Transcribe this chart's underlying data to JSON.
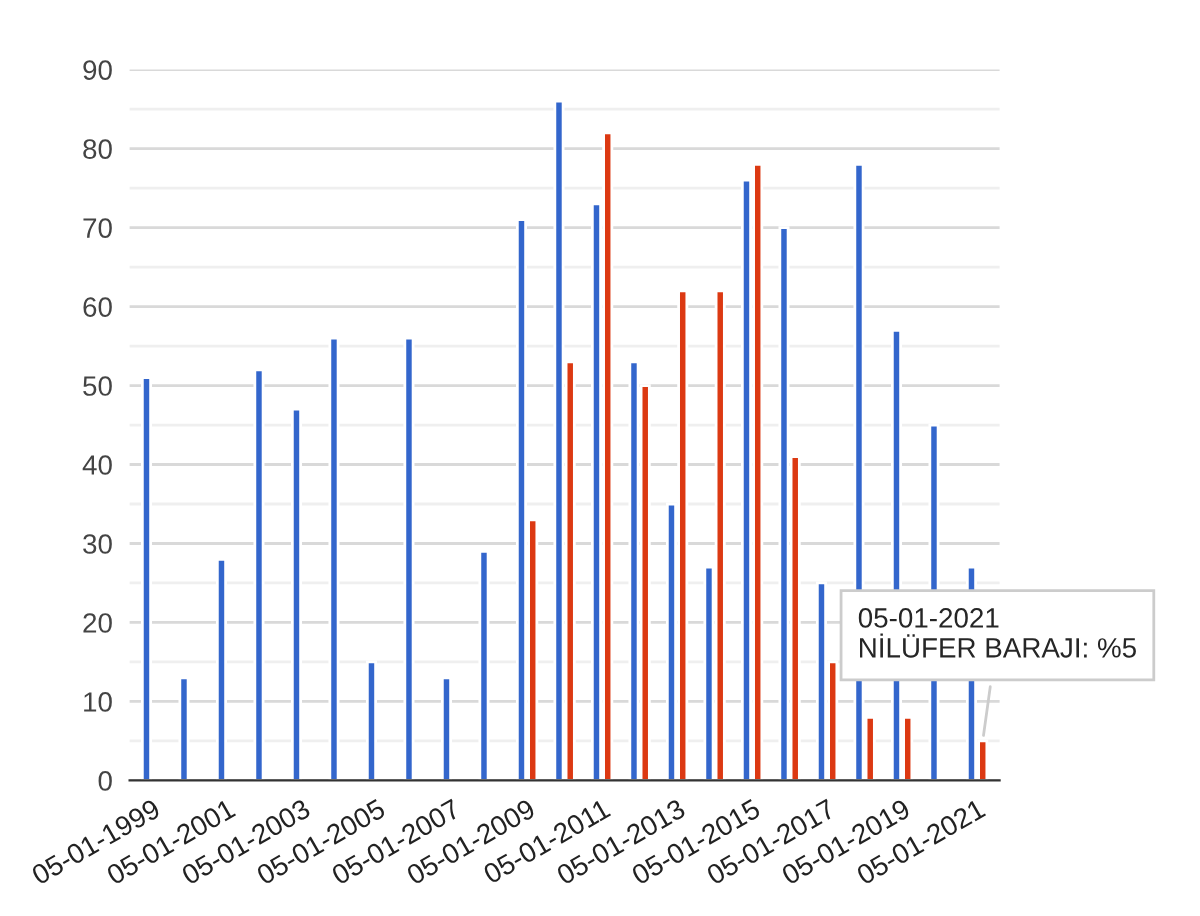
{
  "chart_data": {
    "type": "bar",
    "categories": [
      "05-01-1999",
      null,
      "05-01-2001",
      null,
      "05-01-2003",
      null,
      "05-01-2005",
      null,
      "05-01-2007",
      null,
      "05-01-2009",
      null,
      "05-01-2011",
      null,
      "05-01-2013",
      null,
      "05-01-2015",
      null,
      "05-01-2017",
      null,
      "05-01-2019",
      null,
      "05-01-2021"
    ],
    "series": [
      {
        "color": "#3366cc",
        "values": [
          51,
          13,
          28,
          52,
          47,
          56,
          15,
          56,
          13,
          29,
          71,
          86,
          73,
          53,
          35,
          27,
          76,
          70,
          25,
          78,
          57,
          45,
          27
        ]
      },
      {
        "color": "#dc3912",
        "values": [
          null,
          null,
          null,
          null,
          null,
          null,
          null,
          null,
          null,
          null,
          33,
          53,
          82,
          50,
          62,
          62,
          78,
          41,
          15,
          8,
          8,
          null,
          5
        ]
      }
    ],
    "ylim": [
      0,
      90
    ],
    "yticks": [
      0,
      10,
      20,
      30,
      40,
      50,
      60,
      70,
      80,
      90
    ],
    "grid": "y",
    "legend": false,
    "annotations": [
      {
        "text": "05-01-2021\nNİLÜFER BARAJI: %5",
        "x": "05-01-2021",
        "y": 5
      }
    ]
  }
}
